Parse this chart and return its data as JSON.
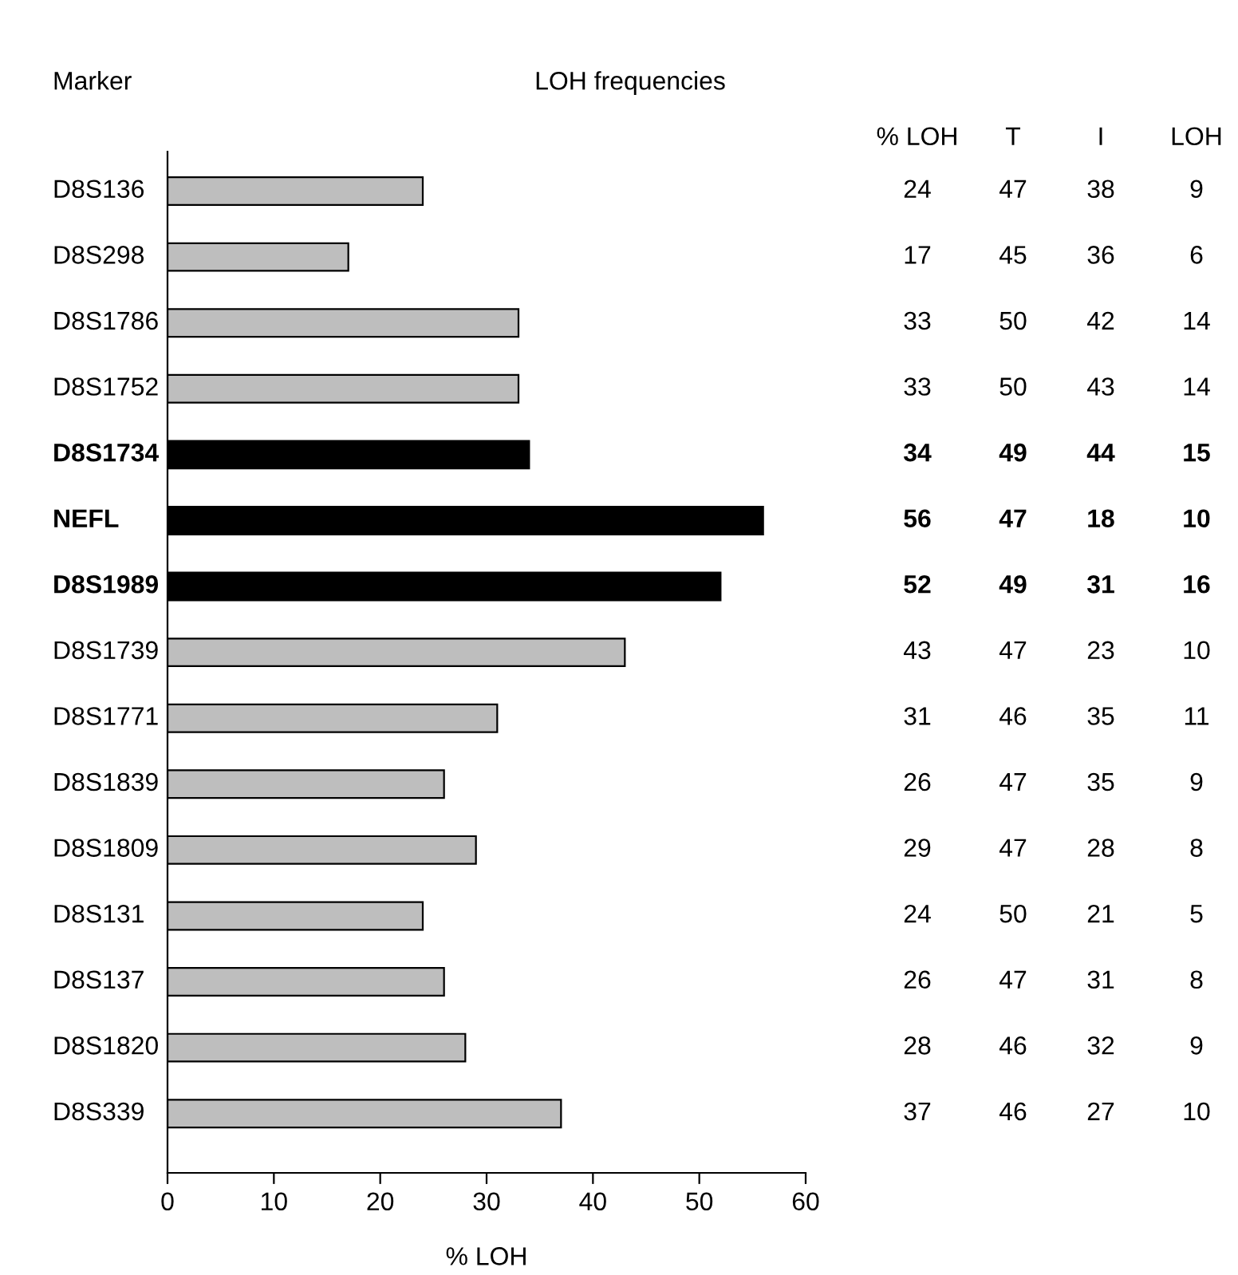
{
  "chart_data": {
    "type": "bar",
    "orientation": "horizontal",
    "title": "LOH frequencies",
    "ylabel": "Marker",
    "xlabel": "% LOH",
    "categories": [
      "D8S136",
      "D8S298",
      "D8S1786",
      "D8S1752",
      "D8S1734",
      "NEFL",
      "D8S1989",
      "D8S1739",
      "D8S1771",
      "D8S1839",
      "D8S1809",
      "D8S131",
      "D8S137",
      "D8S1820",
      "D8S339"
    ],
    "values": [
      24,
      17,
      33,
      33,
      34,
      56,
      52,
      43,
      31,
      26,
      29,
      24,
      26,
      28,
      37
    ],
    "colors": [
      "#bebebe",
      "#bebebe",
      "#bebebe",
      "#bebebe",
      "#000000",
      "#000000",
      "#000000",
      "#bebebe",
      "#bebebe",
      "#bebebe",
      "#bebebe",
      "#bebebe",
      "#bebebe",
      "#bebebe",
      "#bebebe"
    ],
    "data_labels": true,
    "xlim": [
      0,
      60
    ],
    "xticks": [
      0,
      10,
      20,
      30,
      40,
      50,
      60
    ],
    "grid": false,
    "legend": false,
    "annotations": [
      "% LOH",
      "T",
      "I",
      "LOH",
      "47",
      "38",
      "9",
      "45",
      "36",
      "6",
      "50",
      "42",
      "14",
      "50",
      "43",
      "14",
      "49",
      "44",
      "15",
      "47",
      "18",
      "10",
      "49",
      "31",
      "16",
      "47",
      "23",
      "10",
      "46",
      "35",
      "11",
      "47",
      "35",
      "9",
      "47",
      "28",
      "8",
      "50",
      "21",
      "5",
      "47",
      "31",
      "8",
      "46",
      "32",
      "9",
      "46",
      "27",
      "10"
    ]
  }
}
